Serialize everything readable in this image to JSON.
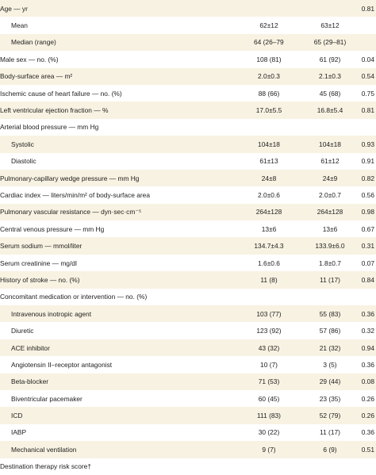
{
  "rows": [
    {
      "label": "Age — yr",
      "c1": "",
      "c2": "",
      "p": "0.81",
      "sub": false
    },
    {
      "label": "Mean",
      "c1": "62±12",
      "c2": "63±12",
      "p": "",
      "sub": true
    },
    {
      "label": "Median (range)",
      "c1": "64 (26–79)",
      "c2": "65 (29–81)",
      "p": "",
      "sub": true
    },
    {
      "label": "Male sex — no. (%)",
      "c1": "108 (81)",
      "c2": "61 (92)",
      "p": "0.04",
      "sub": false
    },
    {
      "label": "Body-surface area — m²",
      "c1": "2.0±0.3",
      "c2": "2.1±0.3",
      "p": "0.54",
      "sub": false
    },
    {
      "label": "Ischemic cause of heart failure — no. (%)",
      "c1": "88 (66)",
      "c2": "45 (68)",
      "p": "0.75",
      "sub": false
    },
    {
      "label": "Left ventricular ejection fraction — %",
      "c1": "17.0±5.5",
      "c2": "16.8±5.4",
      "p": "0.81",
      "sub": false
    },
    {
      "label": "Arterial blood pressure — mm Hg",
      "c1": "",
      "c2": "",
      "p": "",
      "sub": false
    },
    {
      "label": "Systolic",
      "c1": "104±18",
      "c2": "104±18",
      "p": "0.93",
      "sub": true
    },
    {
      "label": "Diastolic",
      "c1": "61±13",
      "c2": "61±12",
      "p": "0.91",
      "sub": true
    },
    {
      "label": "Pulmonary-capillary wedge pressure — mm Hg",
      "c1": "24±8",
      "c2": "24±9",
      "p": "0.82",
      "sub": false
    },
    {
      "label": "Cardiac index — liters/min/m² of body-surface area",
      "c1": "2.0±0.6",
      "c2": "2.0±0.7",
      "p": "0.56",
      "sub": false
    },
    {
      "label": "Pulmonary vascular resistance — dyn·sec·cm⁻⁵",
      "c1": "264±128",
      "c2": "264±128",
      "p": "0.98",
      "sub": false
    },
    {
      "label": "Central venous pressure — mm Hg",
      "c1": "13±6",
      "c2": "13±6",
      "p": "0.67",
      "sub": false
    },
    {
      "label": "Serum sodium — mmol/liter",
      "c1": "134.7±4.3",
      "c2": "133.9±6.0",
      "p": "0.31",
      "sub": false
    },
    {
      "label": "Serum creatinine — mg/dl",
      "c1": "1.6±0.6",
      "c2": "1.8±0.7",
      "p": "0.07",
      "sub": false
    },
    {
      "label": "History of stroke — no. (%)",
      "c1": "11 (8)",
      "c2": "11 (17)",
      "p": "0.84",
      "sub": false
    },
    {
      "label": "Concomitant medication or intervention — no. (%)",
      "c1": "",
      "c2": "",
      "p": "",
      "sub": false
    },
    {
      "label": "Intravenous inotropic agent",
      "c1": "103 (77)",
      "c2": "55 (83)",
      "p": "0.36",
      "sub": true
    },
    {
      "label": "Diuretic",
      "c1": "123 (92)",
      "c2": "57 (86)",
      "p": "0.32",
      "sub": true
    },
    {
      "label": "ACE inhibitor",
      "c1": "43 (32)",
      "c2": "21 (32)",
      "p": "0.94",
      "sub": true
    },
    {
      "label": "Angiotensin II–receptor antagonist",
      "c1": "10 (7)",
      "c2": "3 (5)",
      "p": "0.36",
      "sub": true
    },
    {
      "label": "Beta-blocker",
      "c1": "71 (53)",
      "c2": "29 (44)",
      "p": "0.08",
      "sub": true
    },
    {
      "label": "Biventricular pacemaker",
      "c1": "60 (45)",
      "c2": "23 (35)",
      "p": "0.26",
      "sub": true
    },
    {
      "label": "ICD",
      "c1": "111 (83)",
      "c2": "52 (79)",
      "p": "0.26",
      "sub": true
    },
    {
      "label": "IABP",
      "c1": "30 (22)",
      "c2": "11 (17)",
      "p": "0.36",
      "sub": true
    },
    {
      "label": "Mechanical ventilation",
      "c1": "9 (7)",
      "c2": "6 (9)",
      "p": "0.51",
      "sub": true
    },
    {
      "label": "Destination therapy risk score†",
      "c1": "",
      "c2": "",
      "p": "",
      "sub": false
    }
  ]
}
